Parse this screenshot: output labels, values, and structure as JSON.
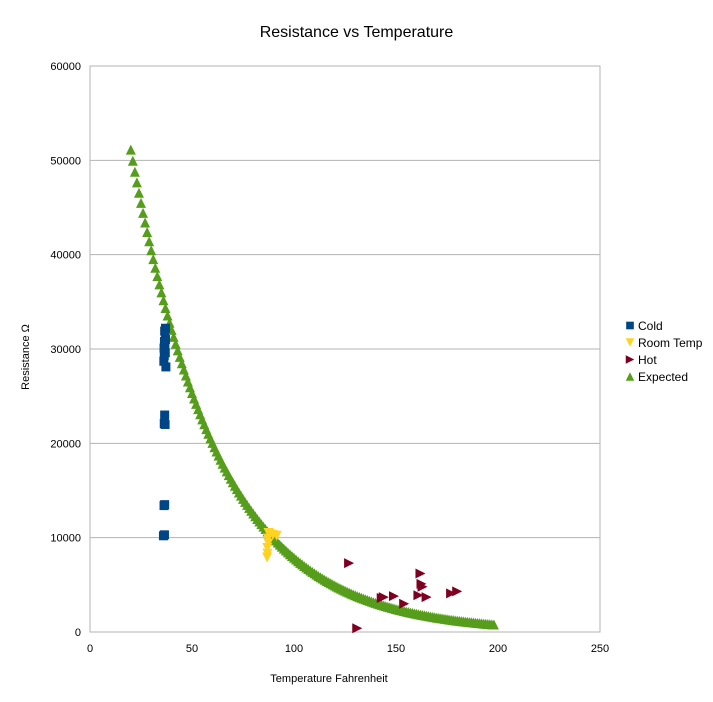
{
  "chart_data": {
    "type": "scatter",
    "title": "Resistance vs Temperature",
    "xlabel": "Temperature Fahrenheit",
    "ylabel": "Resistance Ω",
    "xlim": [
      0,
      250
    ],
    "ylim": [
      0,
      60000
    ],
    "x_ticks": [
      "0",
      "50",
      "100",
      "150",
      "200",
      "250"
    ],
    "y_ticks": [
      "0",
      "10000",
      "20000",
      "30000",
      "40000",
      "50000",
      "60000"
    ],
    "grid": "horizontal",
    "legend_position": "right",
    "series": [
      {
        "name": "Cold",
        "marker": "square",
        "color": "#004586",
        "points": [
          [
            36,
            10200
          ],
          [
            36.5,
            10300
          ],
          [
            36.3,
            13400
          ],
          [
            36.6,
            13500
          ],
          [
            36.4,
            22100
          ],
          [
            36.8,
            22000
          ],
          [
            36.6,
            23000
          ],
          [
            36.2,
            28700
          ],
          [
            37.2,
            28100
          ],
          [
            36.4,
            29300
          ],
          [
            36.9,
            29600
          ],
          [
            36.3,
            30100
          ],
          [
            36.7,
            30400
          ],
          [
            36.5,
            30800
          ],
          [
            37.0,
            31000
          ],
          [
            36.6,
            31900
          ],
          [
            37.0,
            32200
          ]
        ]
      },
      {
        "name": "Room Temp",
        "marker": "triangle-down",
        "color": "#ffd320",
        "points": [
          [
            86.8,
            7900
          ],
          [
            87.0,
            8300
          ],
          [
            86.9,
            8900
          ],
          [
            87.4,
            9400
          ],
          [
            87.2,
            9900
          ],
          [
            87.5,
            10500
          ],
          [
            88.0,
            10400
          ],
          [
            89.7,
            10300
          ],
          [
            91.5,
            10200
          ]
        ]
      },
      {
        "name": "Hot",
        "marker": "triangle-right",
        "color": "#7e0021",
        "points": [
          [
            127,
            7300
          ],
          [
            131,
            400
          ],
          [
            143,
            3600
          ],
          [
            144,
            3700
          ],
          [
            149,
            3800
          ],
          [
            154,
            3000
          ],
          [
            161,
            3900
          ],
          [
            162,
            6200
          ],
          [
            162.5,
            5100
          ],
          [
            163,
            4800
          ],
          [
            165,
            3700
          ],
          [
            177,
            4100
          ],
          [
            180,
            4300
          ]
        ]
      },
      {
        "name": "Expected",
        "marker": "triangle-up",
        "color": "#579d1c",
        "model": {
          "type": "exponential",
          "a": 81650,
          "k": -0.0234,
          "x_start": 20,
          "x_end": 198,
          "x_step": 1
        }
      }
    ]
  }
}
